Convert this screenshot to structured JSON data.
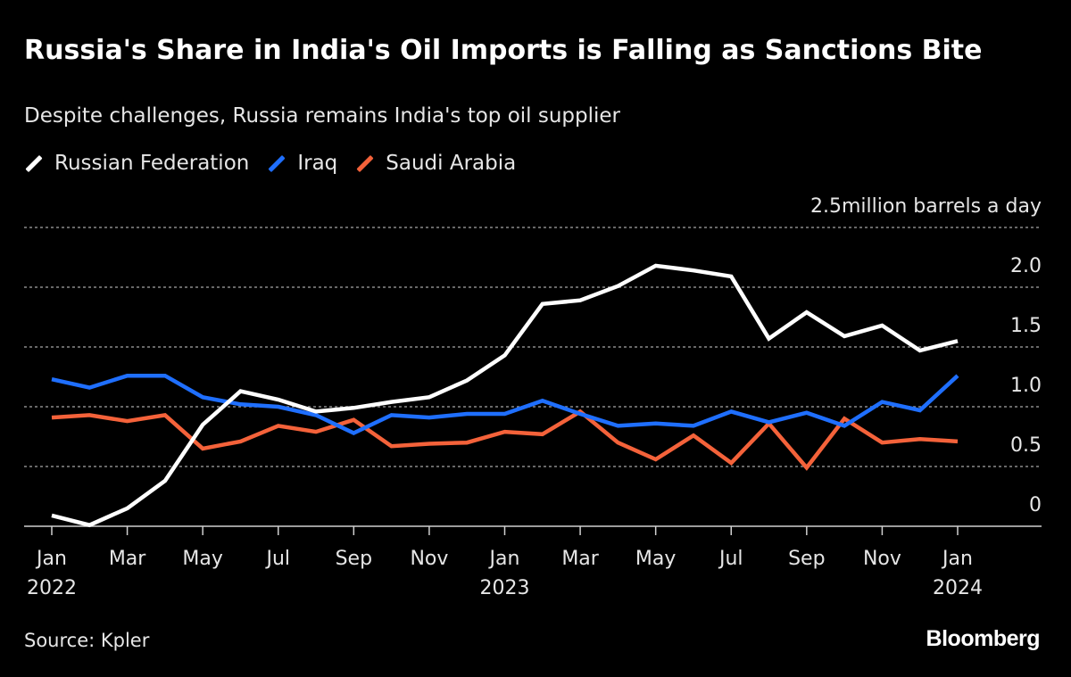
{
  "title": "Russia's Share in India's Oil Imports is Falling as Sanctions Bite",
  "subtitle": "Despite challenges, Russia remains India's top oil supplier",
  "source": "Source: Kpler",
  "brand": "Bloomberg",
  "legend": [
    {
      "label": "Russian Federation",
      "color": "#ffffff"
    },
    {
      "label": "Iraq",
      "color": "#1f6fff"
    },
    {
      "label": "Saudi Arabia",
      "color": "#f4623a"
    }
  ],
  "chart_data": {
    "type": "line",
    "title": "Russia's Share in India's Oil Imports is Falling as Sanctions Bite",
    "subtitle": "Despite challenges, Russia remains India's top oil supplier",
    "ylabel": "million barrels a day",
    "ylim": [
      0,
      2.5
    ],
    "yticks": [
      {
        "value": 2.5,
        "label": "2.5million barrels a day"
      },
      {
        "value": 2.0,
        "label": "2.0"
      },
      {
        "value": 1.5,
        "label": "1.5"
      },
      {
        "value": 1.0,
        "label": "1.0"
      },
      {
        "value": 0.5,
        "label": "0.5"
      },
      {
        "value": 0,
        "label": "0"
      }
    ],
    "x": [
      "Jan 2022",
      "Feb 2022",
      "Mar 2022",
      "Apr 2022",
      "May 2022",
      "Jun 2022",
      "Jul 2022",
      "Aug 2022",
      "Sep 2022",
      "Oct 2022",
      "Nov 2022",
      "Dec 2022",
      "Jan 2023",
      "Feb 2023",
      "Mar 2023",
      "Apr 2023",
      "May 2023",
      "Jun 2023",
      "Jul 2023",
      "Aug 2023",
      "Sep 2023",
      "Oct 2023",
      "Nov 2023",
      "Dec 2023",
      "Jan 2024"
    ],
    "xticks": [
      {
        "index": 0,
        "label": "Jan",
        "year": "2022"
      },
      {
        "index": 2,
        "label": "Mar",
        "year": ""
      },
      {
        "index": 4,
        "label": "May",
        "year": ""
      },
      {
        "index": 6,
        "label": "Jul",
        "year": ""
      },
      {
        "index": 8,
        "label": "Sep",
        "year": ""
      },
      {
        "index": 10,
        "label": "Nov",
        "year": ""
      },
      {
        "index": 12,
        "label": "Jan",
        "year": "2023"
      },
      {
        "index": 14,
        "label": "Mar",
        "year": ""
      },
      {
        "index": 16,
        "label": "May",
        "year": ""
      },
      {
        "index": 18,
        "label": "Jul",
        "year": ""
      },
      {
        "index": 20,
        "label": "Sep",
        "year": ""
      },
      {
        "index": 22,
        "label": "Nov",
        "year": ""
      },
      {
        "index": 24,
        "label": "Jan",
        "year": "2024"
      }
    ],
    "series": [
      {
        "name": "Russian Federation",
        "color": "#ffffff",
        "values": [
          0.09,
          0.01,
          0.15,
          0.38,
          0.85,
          1.13,
          1.06,
          0.96,
          0.99,
          1.04,
          1.08,
          1.22,
          1.43,
          1.86,
          1.89,
          2.01,
          2.18,
          2.14,
          2.09,
          1.57,
          1.79,
          1.59,
          1.68,
          1.47,
          1.55
        ]
      },
      {
        "name": "Iraq",
        "color": "#1f6fff",
        "values": [
          1.23,
          1.16,
          1.26,
          1.26,
          1.08,
          1.02,
          1.0,
          0.93,
          0.78,
          0.93,
          0.91,
          0.94,
          0.94,
          1.05,
          0.94,
          0.84,
          0.86,
          0.84,
          0.96,
          0.87,
          0.95,
          0.84,
          1.04,
          0.97,
          1.26
        ]
      },
      {
        "name": "Saudi Arabia",
        "color": "#f4623a",
        "values": [
          0.91,
          0.93,
          0.88,
          0.93,
          0.65,
          0.71,
          0.84,
          0.79,
          0.89,
          0.67,
          0.69,
          0.7,
          0.79,
          0.77,
          0.96,
          0.7,
          0.56,
          0.76,
          0.53,
          0.86,
          0.49,
          0.9,
          0.7,
          0.73,
          0.71
        ]
      }
    ]
  }
}
